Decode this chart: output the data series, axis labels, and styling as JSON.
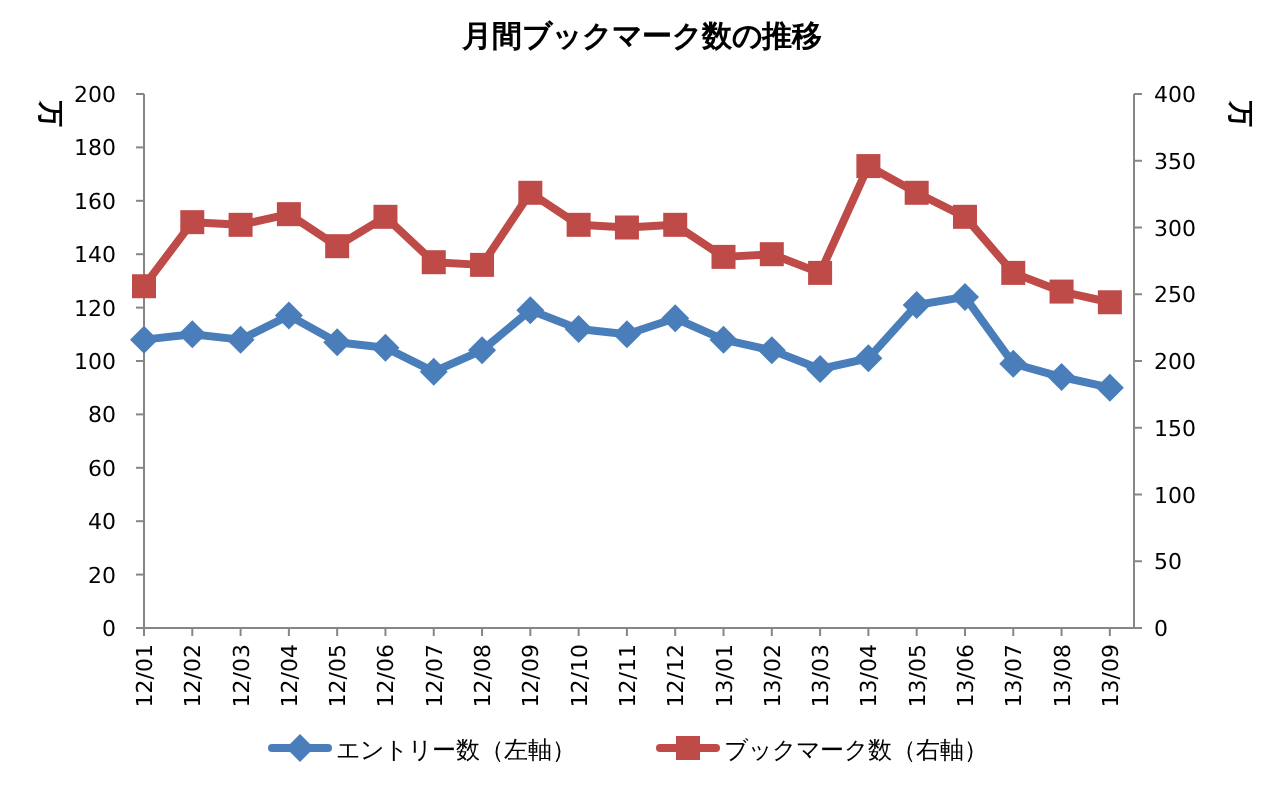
{
  "chart_data": {
    "type": "line",
    "title": "月間ブックマーク数の推移",
    "categories": [
      "12/01",
      "12/02",
      "12/03",
      "12/04",
      "12/05",
      "12/06",
      "12/07",
      "12/08",
      "12/09",
      "12/10",
      "12/11",
      "12/12",
      "13/01",
      "13/02",
      "13/03",
      "13/04",
      "13/05",
      "13/06",
      "13/07",
      "13/08",
      "13/09"
    ],
    "series": [
      {
        "name": "エントリー数（左軸）",
        "color": "#4a7ebb",
        "marker": "diamond",
        "values": [
          108,
          110,
          108,
          117,
          107,
          105,
          96,
          104,
          119,
          112,
          110,
          116,
          108,
          104,
          97,
          101,
          121,
          124,
          99,
          94,
          90
        ]
      },
      {
        "name": "ブックマーク数（右軸）",
        "color": "#be4b48",
        "marker": "square",
        "axis": "y2",
        "values": [
          256,
          304,
          302,
          310,
          286,
          308,
          274,
          272,
          326,
          302,
          300,
          302,
          278,
          280,
          266,
          346,
          326,
          308,
          266,
          252,
          244
        ]
      }
    ],
    "ylabel": "万",
    "y2label": "万",
    "ylim": [
      0,
      200
    ],
    "yticks": [
      0,
      20,
      40,
      60,
      80,
      100,
      120,
      140,
      160,
      180,
      200
    ],
    "y2lim": [
      0,
      400
    ],
    "y2ticks": [
      0,
      50,
      100,
      150,
      200,
      250,
      300,
      350,
      400
    ],
    "grid": false,
    "legend": "bottom"
  }
}
